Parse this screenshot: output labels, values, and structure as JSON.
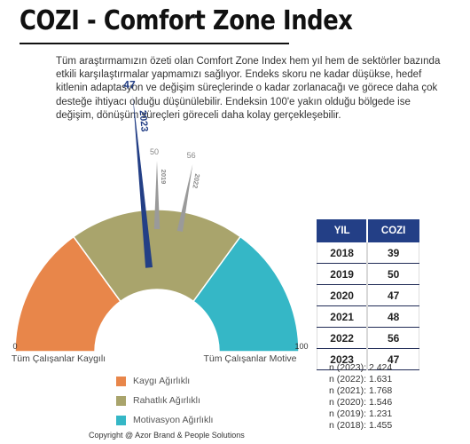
{
  "title": "COZI - Comfort Zone Index",
  "intro": "Tüm araştırmamızın özeti olan Comfort Zone Index hem yıl hem de sektörler bazında etkili karşılaştırmalar yapmamızı sağlıyor. Endeks skoru ne kadar düşükse, hedef kitlenin adaptasyon ve değişim süreçlerinde o kadar zorlanacağı ve görece daha çok desteğe ihtiyacı olduğu düşünülebilir. Endeksin 100'e yakın olduğu bölgede ise değişim, dönüşüm süreçleri göreceli daha kolay gerçekleşebilir.",
  "colors": {
    "kaygi": "#e8864a",
    "rahatlik": "#a9a46c",
    "motive": "#35b7c6",
    "needle_current": "#233f86",
    "needle_past": "#9a9a9a",
    "table_header": "#233f86"
  },
  "chart_data": {
    "type": "gauge",
    "scale": [
      0,
      100
    ],
    "scale_min_label": "0",
    "scale_max_label": "100",
    "left_label": "Tüm Çalışanlar Kaygılı",
    "right_label": "Tüm Çalışanlar Motive",
    "segments": [
      {
        "name": "Kaygı Ağırlıklı",
        "from": 0,
        "to": 30,
        "color_key": "kaygi"
      },
      {
        "name": "Rahatlık Ağırlıklı",
        "from": 30,
        "to": 70,
        "color_key": "rahatlik"
      },
      {
        "name": "Motivasyon Ağırlıklı",
        "from": 70,
        "to": 100,
        "color_key": "motive"
      }
    ],
    "needles": [
      {
        "year": "2023",
        "value": 47,
        "value_label": "47",
        "current": true
      },
      {
        "year": "2019",
        "value": 50,
        "value_label": "50",
        "current": false
      },
      {
        "year": "2022",
        "value": 56,
        "value_label": "56",
        "current": false
      }
    ],
    "table": {
      "headers": [
        "YIL",
        "COZI"
      ],
      "rows": [
        [
          "2018",
          "39"
        ],
        [
          "2019",
          "50"
        ],
        [
          "2020",
          "47"
        ],
        [
          "2021",
          "48"
        ],
        [
          "2022",
          "56"
        ],
        [
          "2023",
          "47"
        ]
      ]
    },
    "sample_sizes": [
      "n (2023): 2.424",
      "n (2022): 1.631",
      "n (2021): 1.768",
      "n (2020): 1.546",
      "n (2019): 1.231",
      "n (2018): 1.455"
    ]
  },
  "copyright": "Copyright @ Azor Brand & People Solutions"
}
